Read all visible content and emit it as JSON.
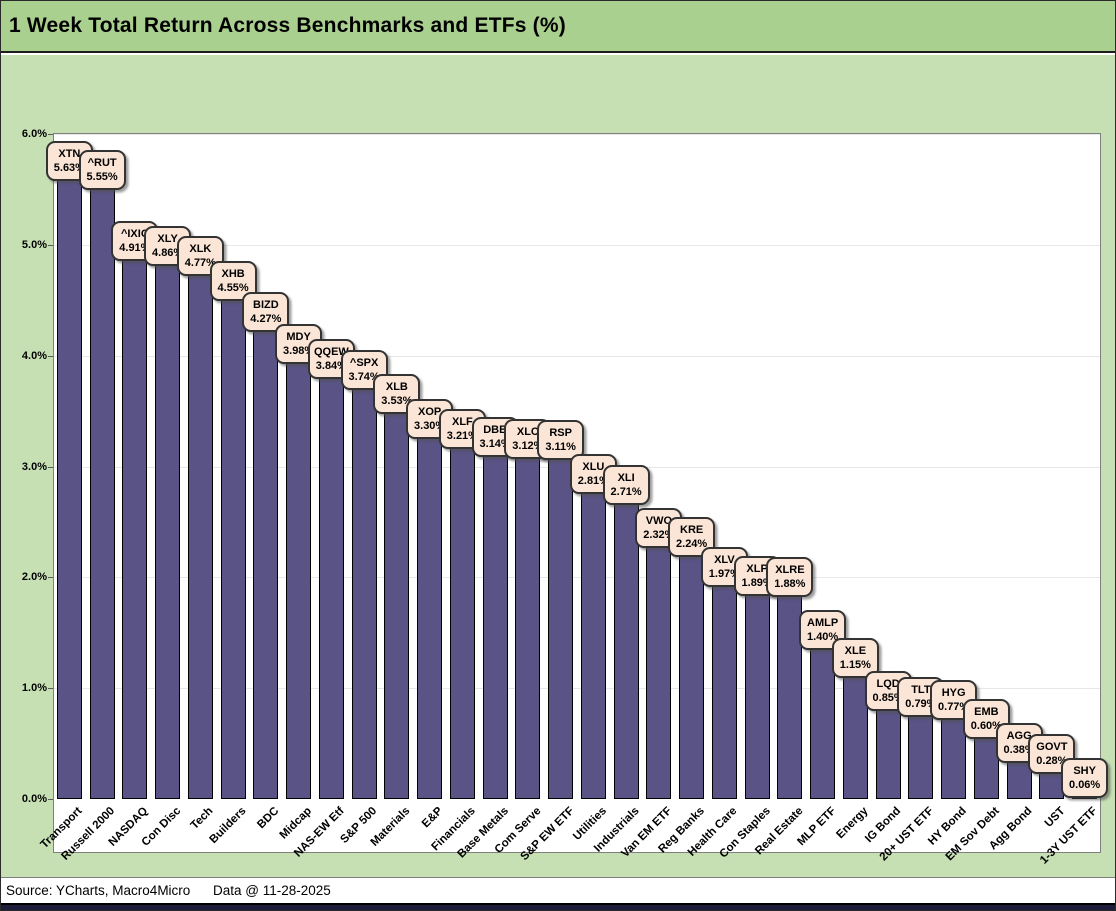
{
  "title": "1 Week Total Return Across Benchmarks and ETFs (%)",
  "footer": {
    "source": "Source: YCharts, Macro4Micro",
    "data_date": "Data @ 11-28-2025"
  },
  "colors": {
    "title_bg": "#a9d08e",
    "chart_bg": "#c6e0b4",
    "plot_bg": "#ffffff",
    "bar_fill": "#5a5386",
    "bar_border": "#000000",
    "callout_bg": "#fbe5d6",
    "callout_border": "#333333",
    "gridline": "#e8e8e8",
    "bottom_strip": "#1c1c3a"
  },
  "chart_data": {
    "type": "bar",
    "title": "1 Week Total Return Across Benchmarks and ETFs (%)",
    "xlabel": "",
    "ylabel": "",
    "ylim": [
      0,
      6.5
    ],
    "grid": true,
    "legend": false,
    "y_ticks": [
      {
        "value": 0,
        "label": "0.0%"
      },
      {
        "value": 1,
        "label": "1.0%"
      },
      {
        "value": 2,
        "label": "2.0%"
      },
      {
        "value": 3,
        "label": "3.0%"
      },
      {
        "value": 4,
        "label": "4.0%"
      },
      {
        "value": 5,
        "label": "5.0%"
      },
      {
        "value": 6,
        "label": "6.0%"
      }
    ],
    "bars": [
      {
        "category": "Transport",
        "ticker": "XTN",
        "value": 5.63,
        "label": "5.63%"
      },
      {
        "category": "Russell 2000",
        "ticker": "^RUT",
        "value": 5.55,
        "label": "5.55%"
      },
      {
        "category": "NASDAQ",
        "ticker": "^IXIC",
        "value": 4.91,
        "label": "4.91%"
      },
      {
        "category": "Con Disc",
        "ticker": "XLY",
        "value": 4.86,
        "label": "4.86%"
      },
      {
        "category": "Tech",
        "ticker": "XLK",
        "value": 4.77,
        "label": "4.77%"
      },
      {
        "category": "Builders",
        "ticker": "XHB",
        "value": 4.55,
        "label": "4.55%"
      },
      {
        "category": "BDC",
        "ticker": "BIZD",
        "value": 4.27,
        "label": "4.27%"
      },
      {
        "category": "Midcap",
        "ticker": "MDY",
        "value": 3.98,
        "label": "3.98%"
      },
      {
        "category": "NAS-EW Etf",
        "ticker": "QQEW",
        "value": 3.84,
        "label": "3.84%"
      },
      {
        "category": "S&P 500",
        "ticker": "^SPX",
        "value": 3.74,
        "label": "3.74%"
      },
      {
        "category": "Materials",
        "ticker": "XLB",
        "value": 3.53,
        "label": "3.53%"
      },
      {
        "category": "E&P",
        "ticker": "XOP",
        "value": 3.3,
        "label": "3.30%"
      },
      {
        "category": "Financials",
        "ticker": "XLF",
        "value": 3.21,
        "label": "3.21%"
      },
      {
        "category": "Base Metals",
        "ticker": "DBB",
        "value": 3.14,
        "label": "3.14%"
      },
      {
        "category": "Com Serve",
        "ticker": "XLC",
        "value": 3.12,
        "label": "3.12%"
      },
      {
        "category": "S&P EW ETF",
        "ticker": "RSP",
        "value": 3.11,
        "label": "3.11%"
      },
      {
        "category": "Utilities",
        "ticker": "XLU",
        "value": 2.81,
        "label": "2.81%"
      },
      {
        "category": "Industrials",
        "ticker": "XLI",
        "value": 2.71,
        "label": "2.71%"
      },
      {
        "category": "Van EM ETF",
        "ticker": "VWO",
        "value": 2.32,
        "label": "2.32%"
      },
      {
        "category": "Reg Banks",
        "ticker": "KRE",
        "value": 2.24,
        "label": "2.24%"
      },
      {
        "category": "Health Care",
        "ticker": "XLV",
        "value": 1.97,
        "label": "1.97%"
      },
      {
        "category": "Con Staples",
        "ticker": "XLP",
        "value": 1.89,
        "label": "1.89%"
      },
      {
        "category": "Real Estate",
        "ticker": "XLRE",
        "value": 1.88,
        "label": "1.88%"
      },
      {
        "category": "MLP ETF",
        "ticker": "AMLP",
        "value": 1.4,
        "label": "1.40%"
      },
      {
        "category": "Energy",
        "ticker": "XLE",
        "value": 1.15,
        "label": "1.15%"
      },
      {
        "category": "IG Bond",
        "ticker": "LQD",
        "value": 0.85,
        "label": "0.85%"
      },
      {
        "category": "20+ UST ETF",
        "ticker": "TLT",
        "value": 0.79,
        "label": "0.79%"
      },
      {
        "category": "HY Bond",
        "ticker": "HYG",
        "value": 0.77,
        "label": "0.77%"
      },
      {
        "category": "EM Sov Debt",
        "ticker": "EMB",
        "value": 0.6,
        "label": "0.60%"
      },
      {
        "category": "Agg Bond",
        "ticker": "AGG",
        "value": 0.38,
        "label": "0.38%"
      },
      {
        "category": "UST",
        "ticker": "GOVT",
        "value": 0.28,
        "label": "0.28%"
      },
      {
        "category": "1-3Y UST ETF",
        "ticker": "SHY",
        "value": 0.06,
        "label": "0.06%"
      }
    ]
  }
}
